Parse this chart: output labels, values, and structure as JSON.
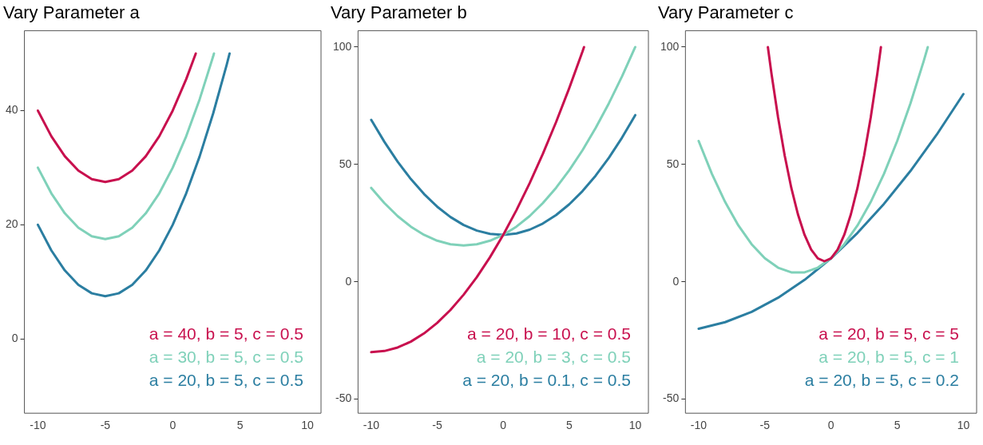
{
  "chart_data": [
    {
      "type": "line",
      "title": "Vary Parameter a",
      "xlim": [
        -11,
        11
      ],
      "xticks": [
        -10,
        -5,
        0,
        5,
        10
      ],
      "ylim": [
        -13,
        54
      ],
      "yticks": [
        0,
        20,
        40
      ],
      "legend": "bottom right",
      "marker": "none",
      "series": [
        {
          "name": "a = 40, b = 5, c = 0.5",
          "color": "#c8104e",
          "x": [
            -10,
            -9,
            -8,
            -7,
            -6,
            -5,
            -4,
            -3,
            -2,
            -1,
            0,
            1,
            1.71
          ],
          "values": [
            40,
            35.5,
            32,
            29.5,
            28,
            27.5,
            28,
            29.5,
            32,
            35.5,
            40,
            45.5,
            50
          ]
        },
        {
          "name": "a = 30, b = 5, c = 0.5",
          "color": "#7fd1b9",
          "x": [
            -10,
            -9,
            -8,
            -7,
            -6,
            -5,
            -4,
            -3,
            -2,
            -1,
            0,
            1,
            2,
            3,
            3.06
          ],
          "values": [
            30,
            25.5,
            22,
            19.5,
            18,
            17.5,
            18,
            19.5,
            22,
            25.5,
            30,
            35.5,
            42,
            49.5,
            50
          ]
        },
        {
          "name": "a = 20, b = 5, c = 0.5",
          "color": "#2b7ea1",
          "x": [
            -10,
            -9,
            -8,
            -7,
            -6,
            -5,
            -4,
            -3,
            -2,
            -1,
            0,
            1,
            2,
            3,
            4,
            4.22
          ],
          "values": [
            20,
            15.5,
            12,
            9.5,
            8,
            7.5,
            8,
            9.5,
            12,
            15.5,
            20,
            25.5,
            32,
            39.5,
            48,
            50
          ]
        }
      ]
    },
    {
      "type": "line",
      "title": "Vary Parameter b",
      "xlim": [
        -11,
        11
      ],
      "xticks": [
        -10,
        -5,
        0,
        5,
        10
      ],
      "ylim": [
        -56,
        107
      ],
      "yticks": [
        -50,
        0,
        50,
        100
      ],
      "legend": "bottom right",
      "marker": "none",
      "series": [
        {
          "name": "a = 20, b = 10, c = 0.5",
          "color": "#c8104e",
          "x": [
            -10,
            -9,
            -8,
            -7,
            -6,
            -5,
            -4,
            -3,
            -2,
            -1,
            0,
            1,
            2,
            3,
            4,
            5,
            6,
            6.12
          ],
          "values": [
            -30,
            -29.5,
            -28,
            -25.5,
            -22,
            -17.5,
            -12,
            -5.5,
            2,
            10.5,
            20,
            30.5,
            42,
            54.5,
            68,
            82.5,
            98,
            100
          ]
        },
        {
          "name": "a = 20, b = 3, c = 0.5",
          "color": "#7fd1b9",
          "x": [
            -10,
            -9,
            -8,
            -7,
            -6,
            -5,
            -4,
            -3,
            -2,
            -1,
            0,
            1,
            2,
            3,
            4,
            5,
            6,
            7,
            8,
            9,
            10
          ],
          "values": [
            40,
            33.5,
            28,
            23.5,
            20,
            17.5,
            16,
            15.5,
            16,
            17.5,
            20,
            23.5,
            28,
            33.5,
            40,
            47.5,
            56,
            65.5,
            76,
            87.5,
            100
          ]
        },
        {
          "name": "a = 20, b = 0.1, c = 0.5",
          "color": "#2b7ea1",
          "x": [
            -10,
            -9,
            -8,
            -7,
            -6,
            -5,
            -4,
            -3,
            -2,
            -1,
            0,
            1,
            2,
            3,
            4,
            5,
            6,
            7,
            8,
            9,
            10
          ],
          "values": [
            69,
            59.6,
            51.2,
            43.8,
            37.4,
            32,
            27.6,
            24.2,
            21.8,
            20.4,
            20,
            20.6,
            22.2,
            24.8,
            28.4,
            33,
            38.6,
            45.2,
            52.8,
            61.4,
            71
          ]
        }
      ]
    },
    {
      "type": "line",
      "title": "Vary Parameter c",
      "xlim": [
        -11,
        11
      ],
      "xticks": [
        -10,
        -5,
        0,
        5,
        10
      ],
      "ylim": [
        -56,
        107
      ],
      "yticks": [
        -50,
        0,
        50,
        100
      ],
      "legend": "bottom right",
      "marker": "none",
      "series": [
        {
          "name": "a = 20, b = 5, c = 5",
          "color": "#c8104e",
          "x": [
            -4.77,
            -4.5,
            -4,
            -3.5,
            -3,
            -2.5,
            -2,
            -1.5,
            -1,
            -0.5,
            0,
            0.5,
            1,
            1.5,
            2,
            2.5,
            3,
            3.5,
            3.77
          ],
          "values": [
            100,
            88.75,
            70,
            53.75,
            40,
            28.75,
            20,
            13.75,
            10,
            8.75,
            10,
            13.75,
            20,
            28.75,
            40,
            53.75,
            70,
            88.75,
            100
          ]
        },
        {
          "name": "a = 20, b = 5, c = 1",
          "color": "#7fd1b9",
          "x": [
            -10,
            -9,
            -8,
            -7,
            -6,
            -5,
            -4,
            -3,
            -2,
            -1,
            0,
            1,
            2,
            3,
            4,
            5,
            6,
            7,
            7.31
          ],
          "values": [
            60,
            46,
            34,
            24,
            16,
            10,
            6,
            4,
            4,
            6,
            10,
            16,
            24,
            34,
            46,
            60,
            76,
            94,
            100
          ]
        },
        {
          "name": "a = 20, b = 5, c = 0.2",
          "color": "#2b7ea1",
          "x": [
            -10,
            -8,
            -6,
            -4,
            -2,
            0,
            2,
            4,
            6,
            8,
            10
          ],
          "values": [
            -20,
            -17.2,
            -12.8,
            -6.8,
            0.8,
            10,
            20.8,
            33.2,
            47.2,
            62.8,
            80
          ]
        }
      ]
    }
  ]
}
